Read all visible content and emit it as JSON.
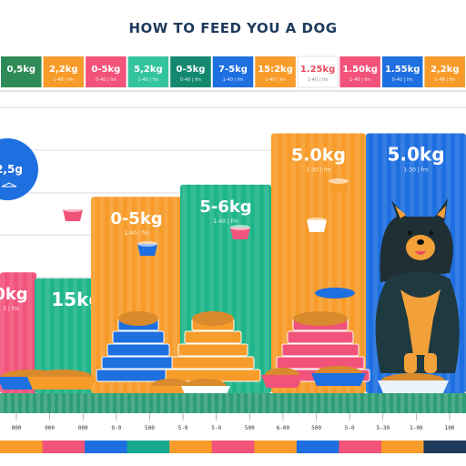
{
  "title": "HOW TO FEED YOU A DOG",
  "colors": {
    "blue": "#1e6fe0",
    "green": "#1fb58a",
    "orange": "#f79c2a",
    "pink": "#f2537a",
    "teal": "#17a88f",
    "dark_green": "#2e8b57"
  },
  "header_tabs": [
    {
      "weight": "0,5kg",
      "sub": "",
      "color": "#2e8b57"
    },
    {
      "weight": "2,2kg",
      "sub": "1-48 | fm",
      "color": "#f79c2a"
    },
    {
      "weight": "0-5kg",
      "sub": "0-40 | fm",
      "color": "#f2537a"
    },
    {
      "weight": "5,2kg",
      "sub": "1-40 | fm",
      "color": "#35c4a0"
    },
    {
      "weight": "0-5kg",
      "sub": "0-40 | fm",
      "color": "#14876f"
    },
    {
      "weight": "7-5kg",
      "sub": "1-40 | fm",
      "color": "#1e6fe0"
    },
    {
      "weight": "15:2kg",
      "sub": "1-40 | fm",
      "color": "#f79c2a"
    },
    {
      "weight": "1.25kg",
      "sub": "1-40 | fm",
      "color": "#ffffff"
    },
    {
      "weight": "1.50kg",
      "sub": "1-40 | fm",
      "color": "#f2537a"
    },
    {
      "weight": "1.55kg",
      "sub": "0-40 | fm",
      "color": "#1e6fe0"
    },
    {
      "weight": "2,2kg",
      "sub": "1-48 | fm",
      "color": "#f79c2a"
    }
  ],
  "chart_data": {
    "type": "bar",
    "title": "HOW TO FEED YOU A DOG",
    "categories": [
      "",
      "",
      "15kg",
      "0-5kg",
      "5-6kg",
      "5.0kg",
      "5.0kg"
    ],
    "bar_labels": [
      "0kg",
      "",
      "15kg",
      "0-5kg",
      "5-6kg",
      "5.0kg",
      "5.0kg"
    ],
    "bar_sublabels": [
      "1 | fm",
      "",
      "",
      "1-40 | fm",
      "1-40 | fm",
      "1-30 | fm",
      "1-30 | fm"
    ],
    "values": [
      4.0,
      3.6,
      3.8,
      6.5,
      6.9,
      8.6,
      8.6
    ],
    "bar_colors": [
      "#f2537a",
      "#1e6fe0",
      "#1fb58a",
      "#f79c2a",
      "#1fb58a",
      "#f79c2a",
      "#1e6fe0"
    ],
    "ylim": [
      0,
      10
    ],
    "left_badge": "2,5g",
    "x_ticks": [
      "000",
      "000",
      "000",
      "9-0",
      "500",
      "5-0",
      "5-0",
      "500",
      "6-00",
      "500",
      "5-0",
      "5-30",
      "1-00",
      "100"
    ],
    "grid": true
  }
}
